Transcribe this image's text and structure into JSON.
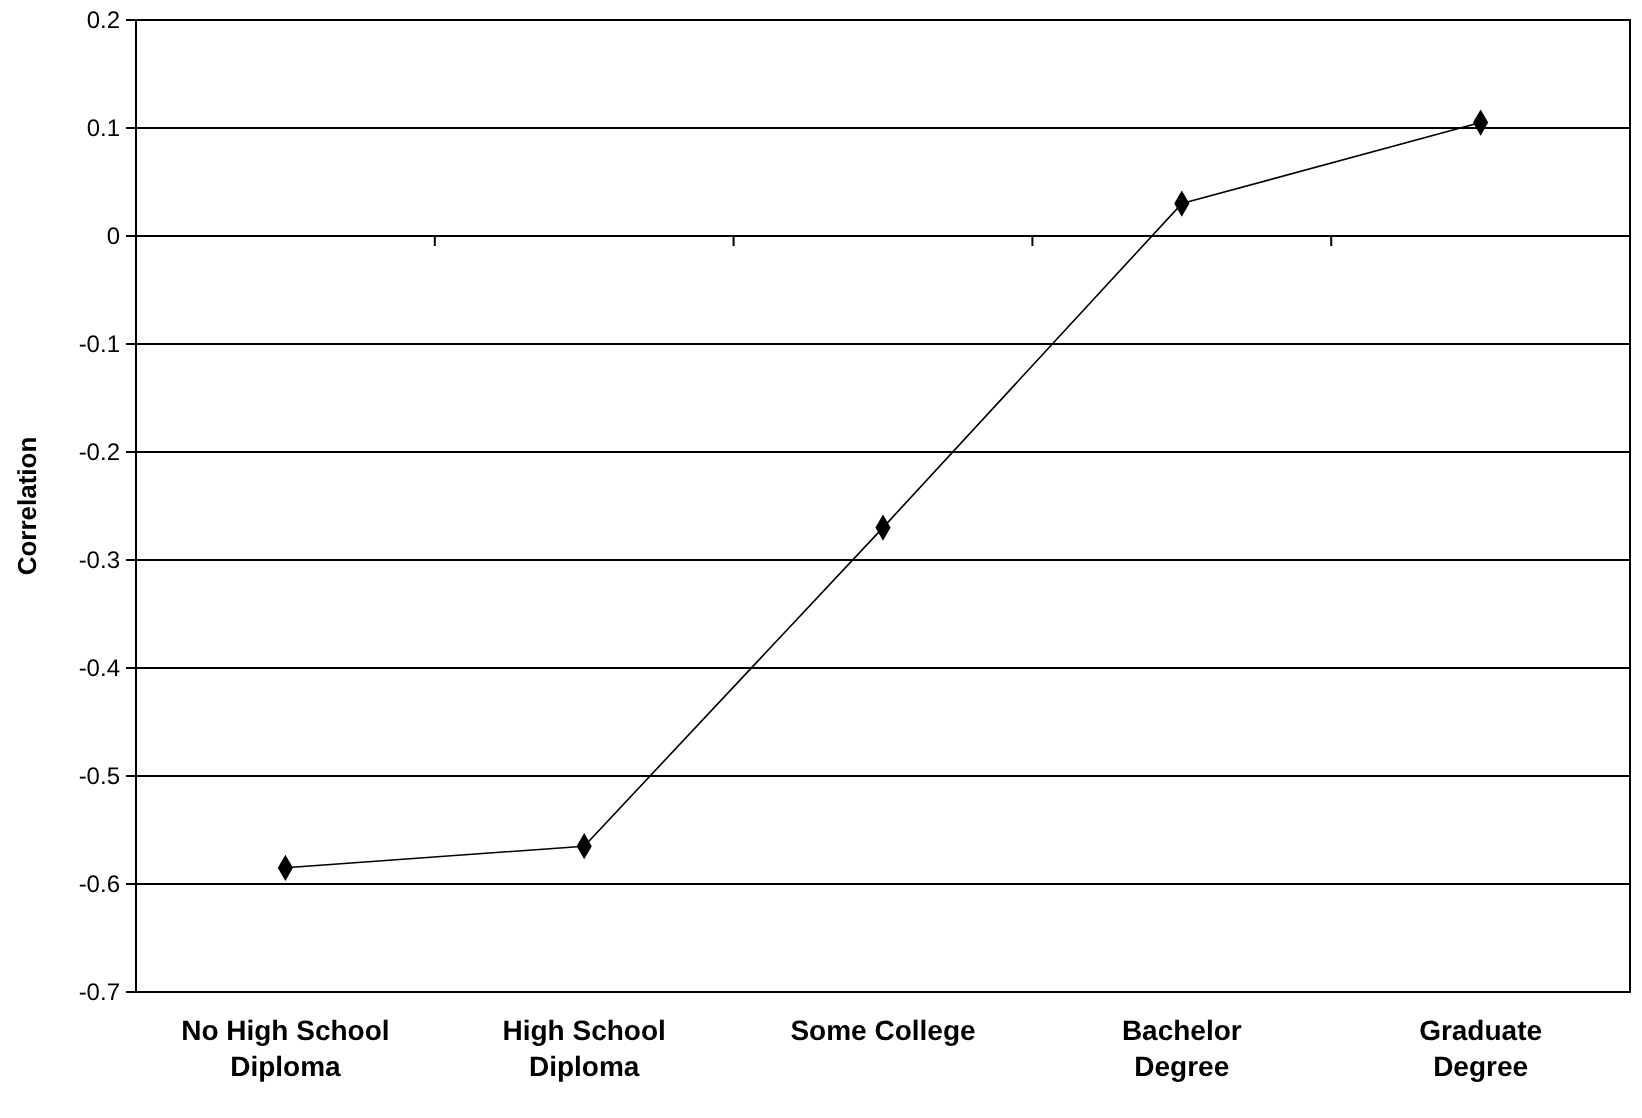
{
  "chart_data": {
    "type": "line",
    "ylabel": "Correlation",
    "categories": [
      "No High School Diploma",
      "High School Diploma",
      "Some College",
      "Bachelor Degree",
      "Graduate Degree"
    ],
    "series": [
      {
        "color": "#000000",
        "values": [
          -0.585,
          -0.565,
          -0.27,
          0.03,
          0.105
        ]
      }
    ],
    "ylim": [
      -0.7,
      0.2
    ],
    "yticks": [
      -0.7,
      -0.6,
      -0.5,
      -0.4,
      -0.3,
      -0.2,
      -0.1,
      0,
      0.1,
      0.2
    ],
    "grid": "y",
    "marker": "diamond",
    "line_style": "solid"
  }
}
